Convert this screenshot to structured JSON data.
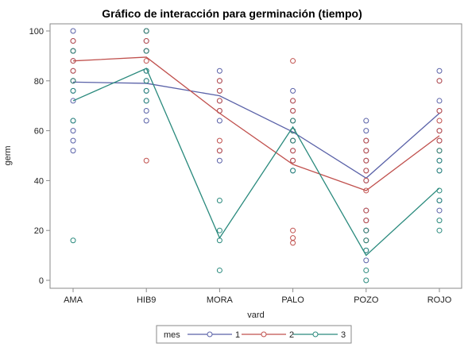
{
  "chart_data": {
    "type": "line",
    "title": "Gráfico de interacción para germinación (tiempo)",
    "xlabel": "vard",
    "ylabel": "germ",
    "categories": [
      "AMA",
      "HIB9",
      "MORA",
      "PALO",
      "POZO",
      "ROJO"
    ],
    "ylim": [
      0,
      100
    ],
    "yticks": [
      0,
      20,
      40,
      60,
      80,
      100
    ],
    "grid": false,
    "legend_position": "bottom",
    "legend_title": "mes",
    "series": [
      {
        "name": "1",
        "color": "#5a62a8",
        "means": [
          79.5,
          79,
          74,
          59.5,
          41,
          67
        ],
        "points": [
          [
            100,
            96,
            92,
            88,
            84,
            80,
            76,
            72,
            64,
            60,
            56,
            52
          ],
          [
            100,
            96,
            92,
            84,
            80,
            76,
            72,
            68,
            64
          ],
          [
            84,
            80,
            76,
            72,
            68,
            64,
            52,
            48
          ],
          [
            76,
            72,
            68,
            64,
            60,
            56,
            52,
            48,
            44
          ],
          [
            64,
            60,
            56,
            52,
            48,
            44,
            40,
            28,
            24,
            20,
            12,
            8
          ],
          [
            84,
            80,
            72,
            68,
            60,
            56,
            48,
            44,
            32,
            28
          ]
        ]
      },
      {
        "name": "2",
        "color": "#c0504d",
        "means": [
          88,
          89.5,
          67,
          46.5,
          36,
          58
        ],
        "points": [
          [
            96,
            92,
            88,
            84,
            80
          ],
          [
            100,
            96,
            92,
            88,
            48
          ],
          [
            80,
            76,
            72,
            68,
            56,
            52
          ],
          [
            88,
            72,
            68,
            64,
            60,
            56,
            52,
            48,
            20,
            17,
            15
          ],
          [
            56,
            52,
            48,
            44,
            40,
            36,
            28,
            24,
            20,
            16
          ],
          [
            80,
            68,
            64,
            60,
            56,
            52
          ]
        ]
      },
      {
        "name": "3",
        "color": "#2a8a7d",
        "means": [
          72,
          85,
          17,
          61.5,
          10,
          37
        ],
        "points": [
          [
            92,
            80,
            76,
            64,
            16
          ],
          [
            100,
            92,
            84,
            80,
            76,
            72
          ],
          [
            32,
            20,
            16,
            4
          ],
          [
            64,
            60,
            56,
            44
          ],
          [
            20,
            16,
            12,
            4,
            0
          ],
          [
            52,
            48,
            44,
            36,
            32,
            24,
            20
          ]
        ]
      }
    ]
  }
}
